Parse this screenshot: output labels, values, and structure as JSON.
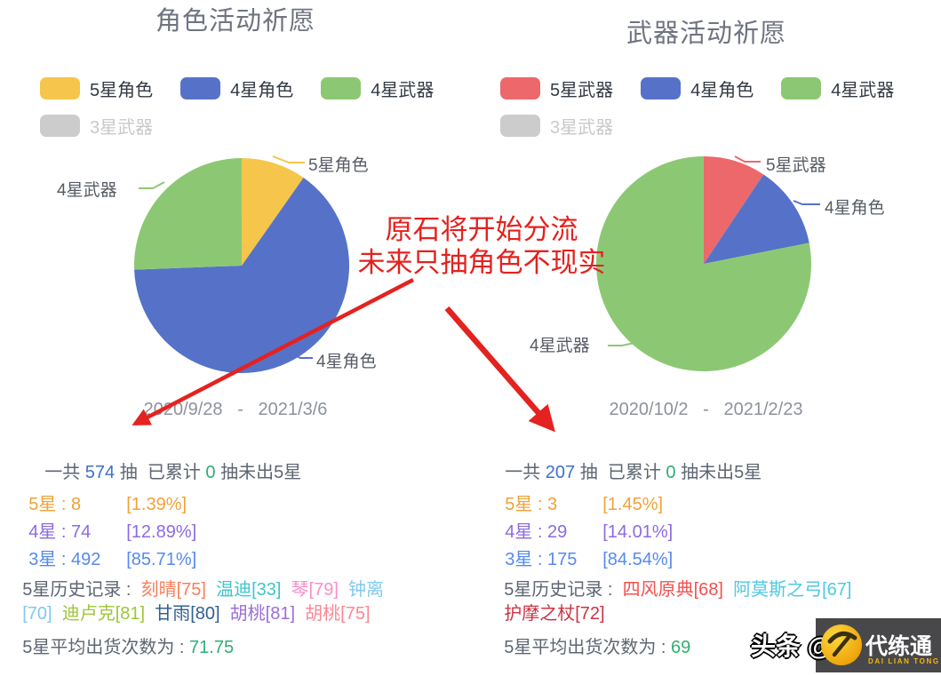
{
  "panels": [
    {
      "title": "角色活动祈愿",
      "legend": [
        {
          "label": "5星角色",
          "color": "#f6c54b",
          "disabled": false
        },
        {
          "label": "4星角色",
          "color": "#5572c8",
          "disabled": false
        },
        {
          "label": "4星武器",
          "color": "#8cc873",
          "disabled": false
        },
        {
          "label": "3星武器",
          "color": "#cccccc",
          "disabled": true
        }
      ],
      "pie_labels": [
        {
          "text": "5星角色"
        },
        {
          "text": "4星武器"
        },
        {
          "text": "4星角色"
        }
      ],
      "date_range": "2020/9/28   -   2021/3/6",
      "summary": [
        {
          "text": "一共 ",
          "color": "#5e6673"
        },
        {
          "text": "574",
          "color": "#3e6fd0"
        },
        {
          "text": " 抽  已累计 ",
          "color": "#5e6673"
        },
        {
          "text": "0",
          "color": "#2fae74"
        },
        {
          "text": " 抽未出5星",
          "color": "#5e6673"
        }
      ],
      "rarity_rows": [
        {
          "text": "5星 : 8",
          "pct": "[1.39%]",
          "color": "#f0a238"
        },
        {
          "text": "4星 : 74",
          "pct": "[12.89%]",
          "color": "#8d6ae2"
        },
        {
          "text": "3星 : 492",
          "pct": "[85.71%]",
          "color": "#568aee"
        }
      ],
      "history_lines": [
        [
          {
            "text": "5星历史记录 :  ",
            "color": "#5e6673"
          },
          {
            "text": "刻晴[75]",
            "color": "#fa7e58"
          },
          {
            "text": "  温迪[33]",
            "color": "#3fc5cd"
          },
          {
            "text": "  琴[79]",
            "color": "#fa8ec9"
          },
          {
            "text": "  钟离",
            "color": "#82c8ee"
          }
        ],
        [
          {
            "text": "[70]",
            "color": "#82c8ee"
          },
          {
            "text": "  迪卢克[81]",
            "color": "#a0c53a"
          },
          {
            "text": "  甘雨[80]",
            "color": "#33608f"
          },
          {
            "text": "  胡桃[81]",
            "color": "#9c6fd6"
          },
          {
            "text": "  胡桃[75]",
            "color": "#fc8795"
          }
        ]
      ],
      "avg": {
        "label": "5星平均出货次数为 : ",
        "value": "71.75",
        "value_color": "#2fae74"
      }
    },
    {
      "title": "武器活动祈愿",
      "legend": [
        {
          "label": "5星武器",
          "color": "#ec686b",
          "disabled": false
        },
        {
          "label": "4星角色",
          "color": "#5572c8",
          "disabled": false
        },
        {
          "label": "4星武器",
          "color": "#8cc873",
          "disabled": false
        },
        {
          "label": "3星武器",
          "color": "#cccccc",
          "disabled": true
        }
      ],
      "pie_labels": [
        {
          "text": "5星武器"
        },
        {
          "text": "4星角色"
        },
        {
          "text": "4星武器"
        }
      ],
      "date_range": "2020/10/2   -   2021/2/23",
      "summary": [
        {
          "text": "一共 ",
          "color": "#5e6673"
        },
        {
          "text": "207",
          "color": "#3e6fd0"
        },
        {
          "text": " 抽  已累计 ",
          "color": "#5e6673"
        },
        {
          "text": "0",
          "color": "#2fae74"
        },
        {
          "text": " 抽未出5星",
          "color": "#5e6673"
        }
      ],
      "rarity_rows": [
        {
          "text": "5星 : 3",
          "pct": "[1.45%]",
          "color": "#f0a238"
        },
        {
          "text": "4星 : 29",
          "pct": "[14.01%]",
          "color": "#8d6ae2"
        },
        {
          "text": "3星 : 175",
          "pct": "[84.54%]",
          "color": "#568aee"
        }
      ],
      "history_lines": [
        [
          {
            "text": "5星历史记录 :  ",
            "color": "#5e6673"
          },
          {
            "text": "四风原典[68]",
            "color": "#f4504f"
          },
          {
            "text": "  阿莫斯之弓[67]",
            "color": "#4ec9e1"
          }
        ],
        [
          {
            "text": "护摩之杖[72]",
            "color": "#cc3344"
          }
        ]
      ],
      "avg": {
        "label": "5星平均出货次数为 : ",
        "value": "69",
        "value_color": "#2fae74"
      }
    }
  ],
  "chart_data": [
    {
      "type": "pie",
      "title": "角色活动祈愿",
      "slices": [
        {
          "label": "5星角色",
          "value": 8,
          "color": "#f6c54b"
        },
        {
          "label": "4星角色",
          "value": 53,
          "color": "#5572c8"
        },
        {
          "label": "4星武器",
          "value": 21,
          "color": "#8cc873"
        }
      ],
      "legend": [
        "5星角色",
        "4星角色",
        "4星武器",
        "3星武器"
      ],
      "legend_disabled": [
        "3星武器"
      ],
      "start_angle": "top",
      "direction": "clockwise",
      "date_range": "2020/9/28 - 2021/3/6",
      "total_pulls": 574,
      "counts": {
        "5星": 8,
        "4星": 74,
        "3星": 492
      },
      "percents": {
        "5星": "1.39%",
        "4星": "12.89%",
        "3星": "85.71%"
      },
      "avg_pity": 71.75
    },
    {
      "type": "pie",
      "title": "武器活动祈愿",
      "slices": [
        {
          "label": "5星武器",
          "value": 3,
          "color": "#ec686b"
        },
        {
          "label": "4星角色",
          "value": 4,
          "color": "#5572c8"
        },
        {
          "label": "4星武器",
          "value": 25,
          "color": "#8cc873"
        }
      ],
      "legend": [
        "5星武器",
        "4星角色",
        "4星武器",
        "3星武器"
      ],
      "legend_disabled": [
        "3星武器"
      ],
      "start_angle": "top",
      "direction": "clockwise",
      "date_range": "2020/10/2 - 2021/2/23",
      "total_pulls": 207,
      "counts": {
        "5星": 3,
        "4星": 29,
        "3星": 175
      },
      "percents": {
        "5星": "1.45%",
        "4星": "14.01%",
        "3星": "84.54%"
      },
      "avg_pity": 69
    }
  ],
  "annotation": {
    "line1": "原石将开始分流",
    "line2": "未来只抽角色不现实",
    "color": "#e4221f"
  },
  "watermark": {
    "handle": "头条 @冻",
    "brand": "代练通",
    "brand_sub": "DAI LIAN TONG",
    "brand_sub_color": "#f5b50f"
  }
}
